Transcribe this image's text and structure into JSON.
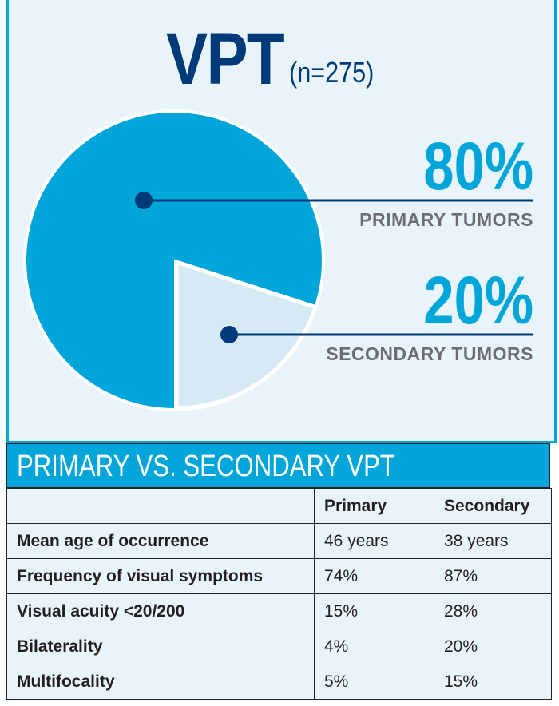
{
  "header": {
    "title": "VPT",
    "n": "(n=275)"
  },
  "chart_data": {
    "type": "pie",
    "title": "VPT (n=275)",
    "slices": [
      {
        "label": "PRIMARY TUMORS",
        "value": 80,
        "value_label": "80%",
        "color": "#00a6d9"
      },
      {
        "label": "SECONDARY TUMORS",
        "value": 20,
        "value_label": "20%",
        "color": "#d6eaf6"
      }
    ]
  },
  "table": {
    "title": "PRIMARY VS. SECONDARY VPT",
    "columns": [
      "",
      "Primary",
      "Secondary"
    ],
    "rows": [
      [
        "Mean age of occurrence",
        "46 years",
        "38 years"
      ],
      [
        "Frequency of visual symptoms",
        "74%",
        "87%"
      ],
      [
        "Visual acuity <20/200",
        "15%",
        "28%"
      ],
      [
        "Bilaterality",
        "4%",
        "20%"
      ],
      [
        "Multifocality",
        "5%",
        "15%"
      ]
    ]
  }
}
